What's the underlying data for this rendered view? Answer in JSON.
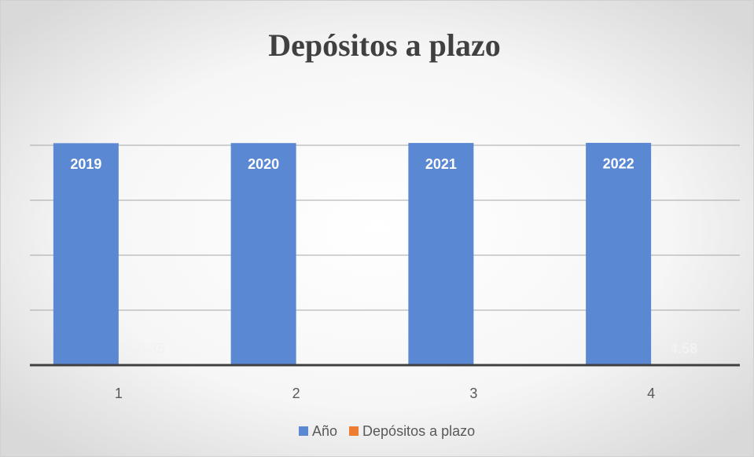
{
  "chart_data": {
    "type": "bar",
    "title": "Depósitos a plazo",
    "categories": [
      "1",
      "2",
      "3",
      "4"
    ],
    "series": [
      {
        "name": "Año",
        "color": "#5b88d3",
        "values": [
          2019,
          2020,
          2021,
          2022
        ]
      },
      {
        "name": "Depósitos a plazo",
        "color": "#ed7d31",
        "values": [
          8.35,
          null,
          null,
          4.58
        ]
      }
    ],
    "ylim": [
      0,
      2500
    ],
    "yticks": [
      0,
      500,
      1000,
      1500,
      2000
    ],
    "grid": true,
    "legend": "bottom"
  }
}
